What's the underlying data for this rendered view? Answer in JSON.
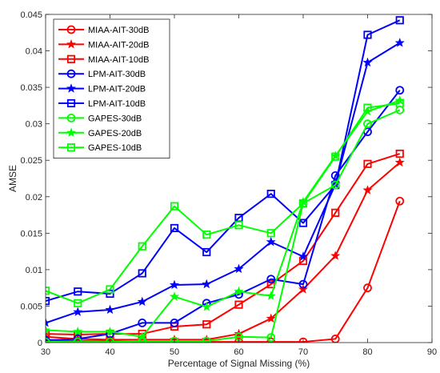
{
  "chart_data": {
    "type": "line",
    "title": "",
    "xlabel": "Percentage of Signal Missing (%)",
    "ylabel": "AMSE",
    "xlim": [
      30,
      90
    ],
    "ylim": [
      0,
      0.045
    ],
    "xticks": [
      30,
      40,
      50,
      60,
      70,
      80,
      90
    ],
    "yticks": [
      0,
      0.005,
      0.01,
      0.015,
      0.02,
      0.025,
      0.03,
      0.035,
      0.04,
      0.045
    ],
    "xtick_labels": [
      "30",
      "40",
      "50",
      "60",
      "70",
      "80",
      "90"
    ],
    "ytick_labels": [
      "0",
      "0.005",
      "0.01",
      "0.015",
      "0.02",
      "0.025",
      "0.03",
      "0.035",
      "0.04",
      "0.045"
    ],
    "grid": false,
    "legend_position": "top-left",
    "x": [
      30,
      35,
      40,
      45,
      50,
      55,
      60,
      65,
      70,
      75,
      80,
      85
    ],
    "series": [
      {
        "name": "MIAA-AIT-30dB",
        "color": "#ff0000",
        "marker": "circle",
        "values": [
          0.0004,
          0.0002,
          0.0002,
          0.0001,
          0.0001,
          0.0001,
          0.0001,
          0.0001,
          0.0001,
          0.0005,
          0.0075,
          0.0194
        ]
      },
      {
        "name": "MIAA-AIT-20dB",
        "color": "#ff0000",
        "marker": "star",
        "values": [
          0.0008,
          0.0005,
          0.0004,
          0.0004,
          0.0004,
          0.0004,
          0.0012,
          0.0033,
          0.0073,
          0.0119,
          0.0209,
          0.0247
        ]
      },
      {
        "name": "MIAA-AIT-10dB",
        "color": "#ff0000",
        "marker": "square",
        "values": [
          0.0012,
          0.0011,
          0.0012,
          0.0012,
          0.0022,
          0.0025,
          0.0052,
          0.008,
          0.0112,
          0.0178,
          0.0245,
          0.0259
        ]
      },
      {
        "name": "LPM-AIT-30dB",
        "color": "#0000ff",
        "marker": "circle",
        "values": [
          0.0003,
          0.0005,
          0.0012,
          0.0027,
          0.0027,
          0.0054,
          0.0066,
          0.0087,
          0.008,
          0.0229,
          0.0289,
          0.0346
        ]
      },
      {
        "name": "LPM-AIT-20dB",
        "color": "#0000ff",
        "marker": "star",
        "values": [
          0.0027,
          0.0042,
          0.0045,
          0.0056,
          0.0079,
          0.008,
          0.0101,
          0.0138,
          0.0118,
          0.0217,
          0.0384,
          0.0411
        ]
      },
      {
        "name": "LPM-AIT-10dB",
        "color": "#0000ff",
        "marker": "square",
        "values": [
          0.0057,
          0.007,
          0.0067,
          0.0095,
          0.0157,
          0.0124,
          0.0171,
          0.0204,
          0.0164,
          0.0216,
          0.0422,
          0.0442
        ]
      },
      {
        "name": "GAPES-30dB",
        "color": "#00ff00",
        "marker": "circle",
        "values": [
          0.0001,
          0.0001,
          0.0001,
          0.0002,
          0.0002,
          0.0002,
          0.0008,
          0.0007,
          0.0191,
          0.0216,
          0.03,
          0.0319
        ]
      },
      {
        "name": "GAPES-20dB",
        "color": "#00ff00",
        "marker": "star",
        "values": [
          0.0017,
          0.0015,
          0.0015,
          0.0008,
          0.0063,
          0.0049,
          0.007,
          0.0064,
          0.0193,
          0.0256,
          0.0317,
          0.0332
        ]
      },
      {
        "name": "GAPES-10dB",
        "color": "#00ff00",
        "marker": "square",
        "values": [
          0.0071,
          0.0054,
          0.0073,
          0.0132,
          0.0187,
          0.0148,
          0.0161,
          0.015,
          0.0191,
          0.0255,
          0.0322,
          0.0328
        ]
      }
    ]
  }
}
